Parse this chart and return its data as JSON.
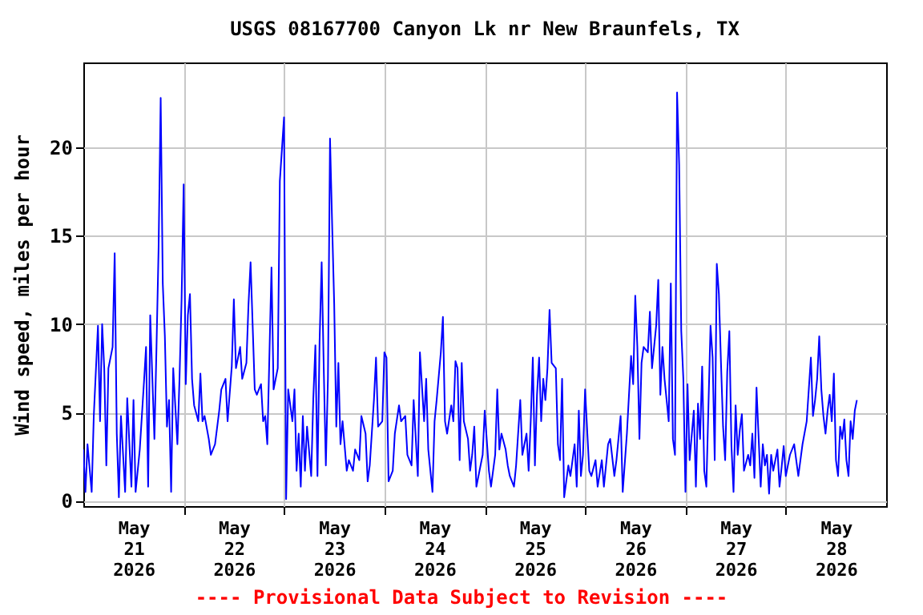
{
  "chart_data": {
    "type": "line",
    "title": "USGS 08167700 Canyon Lk nr New Braunfels, TX",
    "ylabel": "Wind speed, miles per hour",
    "annotations": [
      "---- Provisional Data Subject to Revision ----"
    ],
    "xlim": [
      "2026-05-21",
      "2026-05-29"
    ],
    "xticks": [
      {
        "value": "2026-05-21T12:00",
        "label": "May 21 2026"
      },
      {
        "value": "2026-05-22",
        "label": null
      },
      {
        "value": "2026-05-22T12:00",
        "label": "May 22 2026"
      },
      {
        "value": "2026-05-23",
        "label": null
      },
      {
        "value": "2026-05-23T12:00",
        "label": "May 23 2026"
      },
      {
        "value": "2026-05-24",
        "label": null
      },
      {
        "value": "2026-05-24T12:00",
        "label": "May 24 2026"
      },
      {
        "value": "2026-05-25",
        "label": null
      },
      {
        "value": "2026-05-25T12:00",
        "label": "May 25 2026"
      },
      {
        "value": "2026-05-26",
        "label": null
      },
      {
        "value": "2026-05-26T12:00",
        "label": "May 26 2026"
      },
      {
        "value": "2026-05-27",
        "label": null
      },
      {
        "value": "2026-05-27T12:00",
        "label": "May 27 2026"
      },
      {
        "value": "2026-05-28",
        "label": null
      },
      {
        "value": "2026-05-28T12:00",
        "label": "May 28 2026"
      }
    ],
    "ylim": [
      -0.3,
      24.8
    ],
    "yticks": [
      0,
      5,
      10,
      15,
      20
    ],
    "grid": true,
    "series": [
      {
        "color": "#0000ff",
        "x": [
          "2026-05-21T00:00",
          "2026-05-21T00:30",
          "2026-05-21T01:00",
          "2026-05-21T02:00",
          "2026-05-21T02:30",
          "2026-05-21T03:30",
          "2026-05-21T04:00",
          "2026-05-21T04:30",
          "2026-05-21T05:00",
          "2026-05-21T05:30",
          "2026-05-21T06:00",
          "2026-05-21T07:00",
          "2026-05-21T07:30",
          "2026-05-21T08:00",
          "2026-05-21T08:30",
          "2026-05-21T09:00",
          "2026-05-21T10:00",
          "2026-05-21T10:30",
          "2026-05-21T11:30",
          "2026-05-21T12:00",
          "2026-05-21T12:30",
          "2026-05-21T13:30",
          "2026-05-21T14:30",
          "2026-05-21T15:00",
          "2026-05-21T15:30",
          "2026-05-21T16:00",
          "2026-05-21T17:00",
          "2026-05-21T17:30",
          "2026-05-21T18:00",
          "2026-05-21T18:30",
          "2026-05-21T19:00",
          "2026-05-21T19:30",
          "2026-05-21T20:00",
          "2026-05-21T20:30",
          "2026-05-21T21:00",
          "2026-05-21T21:30",
          "2026-05-21T22:30",
          "2026-05-21T23:00",
          "2026-05-21T23:30",
          "2026-05-22T00:00",
          "2026-05-22T00:30",
          "2026-05-22T01:00",
          "2026-05-22T01:30",
          "2026-05-22T02:00",
          "2026-05-22T02:30",
          "2026-05-22T03:30",
          "2026-05-22T04:00",
          "2026-05-22T04:30",
          "2026-05-22T05:00",
          "2026-05-22T06:00",
          "2026-05-22T06:30",
          "2026-05-22T07:30",
          "2026-05-22T08:30",
          "2026-05-22T09:00",
          "2026-05-22T10:00",
          "2026-05-22T10:30",
          "2026-05-22T11:30",
          "2026-05-22T12:00",
          "2026-05-22T12:30",
          "2026-05-22T13:30",
          "2026-05-22T14:00",
          "2026-05-22T15:00",
          "2026-05-22T15:30",
          "2026-05-22T16:00",
          "2026-05-22T17:00",
          "2026-05-22T17:30",
          "2026-05-22T18:30",
          "2026-05-22T19:00",
          "2026-05-22T19:30",
          "2026-05-22T20:00",
          "2026-05-22T21:00",
          "2026-05-22T21:30",
          "2026-05-22T22:30",
          "2026-05-22T23:00",
          "2026-05-23T00:00",
          "2026-05-23T00:30",
          "2026-05-23T01:00",
          "2026-05-23T02:00",
          "2026-05-23T02:30",
          "2026-05-23T03:00",
          "2026-05-23T03:30",
          "2026-05-23T04:00",
          "2026-05-23T04:30",
          "2026-05-23T05:00",
          "2026-05-23T05:30",
          "2026-05-23T06:30",
          "2026-05-23T07:00",
          "2026-05-23T07:30",
          "2026-05-23T08:00",
          "2026-05-23T08:30",
          "2026-05-23T09:00",
          "2026-05-23T09:30",
          "2026-05-23T10:00",
          "2026-05-23T10:30",
          "2026-05-23T11:00",
          "2026-05-23T11:30",
          "2026-05-23T12:00",
          "2026-05-23T12:30",
          "2026-05-23T13:00",
          "2026-05-23T13:30",
          "2026-05-23T14:00",
          "2026-05-23T15:00",
          "2026-05-23T15:30",
          "2026-05-23T16:30",
          "2026-05-23T17:00",
          "2026-05-23T18:00",
          "2026-05-23T18:30",
          "2026-05-23T19:30",
          "2026-05-23T20:00",
          "2026-05-23T20:30",
          "2026-05-23T21:30",
          "2026-05-23T22:00",
          "2026-05-23T22:30",
          "2026-05-23T23:30",
          "2026-05-24T00:00",
          "2026-05-24T00:30",
          "2026-05-24T01:00",
          "2026-05-24T02:00",
          "2026-05-24T02:30",
          "2026-05-24T03:30",
          "2026-05-24T04:00",
          "2026-05-24T05:00",
          "2026-05-24T05:30",
          "2026-05-24T06:30",
          "2026-05-24T07:00",
          "2026-05-24T08:00",
          "2026-05-24T08:30",
          "2026-05-24T09:30",
          "2026-05-24T10:00",
          "2026-05-24T10:30",
          "2026-05-24T11:30",
          "2026-05-24T12:00",
          "2026-05-24T12:30",
          "2026-05-24T13:30",
          "2026-05-24T14:00",
          "2026-05-24T14:30",
          "2026-05-24T15:00",
          "2026-05-24T16:00",
          "2026-05-24T16:30",
          "2026-05-24T17:00",
          "2026-05-24T17:30",
          "2026-05-24T18:00",
          "2026-05-24T18:30",
          "2026-05-24T19:00",
          "2026-05-24T20:00",
          "2026-05-24T20:30",
          "2026-05-24T21:00",
          "2026-05-24T21:30",
          "2026-05-24T22:00",
          "2026-05-24T23:30",
          "2026-05-25T00:00",
          "2026-05-25T01:00",
          "2026-05-25T01:30",
          "2026-05-25T02:30",
          "2026-05-25T03:00",
          "2026-05-25T03:30",
          "2026-05-25T04:00",
          "2026-05-25T05:00",
          "2026-05-25T05:30",
          "2026-05-25T06:00",
          "2026-05-25T07:00",
          "2026-05-25T07:30",
          "2026-05-25T08:30",
          "2026-05-25T09:00",
          "2026-05-25T10:00",
          "2026-05-25T10:30",
          "2026-05-25T11:00",
          "2026-05-25T11:30",
          "2026-05-25T12:00",
          "2026-05-25T12:30",
          "2026-05-25T13:00",
          "2026-05-25T13:30",
          "2026-05-25T14:00",
          "2026-05-25T14:30",
          "2026-05-25T15:00",
          "2026-05-25T15:30",
          "2026-05-25T16:00",
          "2026-05-25T17:00",
          "2026-05-25T17:30",
          "2026-05-25T18:00",
          "2026-05-25T18:30",
          "2026-05-25T19:00",
          "2026-05-25T20:00",
          "2026-05-25T20:30",
          "2026-05-25T21:30",
          "2026-05-25T22:00",
          "2026-05-25T22:30",
          "2026-05-25T23:00",
          "2026-05-25T23:30",
          "2026-05-26T00:00",
          "2026-05-26T01:00",
          "2026-05-26T01:30",
          "2026-05-26T02:30",
          "2026-05-26T03:00",
          "2026-05-26T04:00",
          "2026-05-26T04:30",
          "2026-05-26T05:30",
          "2026-05-26T06:00",
          "2026-05-26T07:00",
          "2026-05-26T07:30",
          "2026-05-26T08:30",
          "2026-05-26T09:00",
          "2026-05-26T10:00",
          "2026-05-26T10:30",
          "2026-05-26T11:00",
          "2026-05-26T11:30",
          "2026-05-26T12:00",
          "2026-05-26T12:30",
          "2026-05-26T13:00",
          "2026-05-26T13:30",
          "2026-05-26T14:00",
          "2026-05-26T15:00",
          "2026-05-26T15:30",
          "2026-05-26T16:00",
          "2026-05-26T17:00",
          "2026-05-26T17:30",
          "2026-05-26T18:00",
          "2026-05-26T18:30",
          "2026-05-26T19:00",
          "2026-05-26T20:00",
          "2026-05-26T20:30",
          "2026-05-26T21:00",
          "2026-05-26T21:30",
          "2026-05-26T22:00",
          "2026-05-26T22:30",
          "2026-05-26T23:00",
          "2026-05-26T23:30",
          "2026-05-27T00:00",
          "2026-05-27T00:30",
          "2026-05-27T01:00",
          "2026-05-27T02:00",
          "2026-05-27T02:30",
          "2026-05-27T03:00",
          "2026-05-27T03:30",
          "2026-05-27T04:00",
          "2026-05-27T04:30",
          "2026-05-27T05:00",
          "2026-05-27T06:00",
          "2026-05-27T06:30",
          "2026-05-27T07:00",
          "2026-05-27T07:30",
          "2026-05-27T08:00",
          "2026-05-27T08:30",
          "2026-05-27T09:00",
          "2026-05-27T09:30",
          "2026-05-27T10:00",
          "2026-05-27T10:30",
          "2026-05-27T11:00",
          "2026-05-27T11:30",
          "2026-05-27T12:00",
          "2026-05-27T12:30",
          "2026-05-27T13:00",
          "2026-05-27T13:30",
          "2026-05-27T14:00",
          "2026-05-27T15:00",
          "2026-05-27T15:30",
          "2026-05-27T16:00",
          "2026-05-27T16:30",
          "2026-05-27T17:00",
          "2026-05-27T18:00",
          "2026-05-27T18:30",
          "2026-05-27T19:00",
          "2026-05-27T19:30",
          "2026-05-27T20:00",
          "2026-05-27T20:30",
          "2026-05-27T21:00",
          "2026-05-27T22:00",
          "2026-05-27T22:30",
          "2026-05-27T23:00",
          "2026-05-27T23:30",
          "2026-05-28T00:00",
          "2026-05-28T01:00",
          "2026-05-28T02:00",
          "2026-05-28T02:30",
          "2026-05-28T03:00",
          "2026-05-28T04:00",
          "2026-05-28T05:00",
          "2026-05-28T05:30",
          "2026-05-28T06:00",
          "2026-05-28T06:30",
          "2026-05-28T07:00",
          "2026-05-28T07:30",
          "2026-05-28T08:00",
          "2026-05-28T08:30",
          "2026-05-28T09:00",
          "2026-05-28T09:30",
          "2026-05-28T10:00",
          "2026-05-28T10:30",
          "2026-05-28T11:00",
          "2026-05-28T11:30",
          "2026-05-28T12:00",
          "2026-05-28T12:30",
          "2026-05-28T13:00",
          "2026-05-28T13:30",
          "2026-05-28T14:00",
          "2026-05-28T14:30",
          "2026-05-28T15:00",
          "2026-05-28T15:30",
          "2026-05-28T16:00",
          "2026-05-28T16:30",
          "2026-05-28T17:00"
        ],
        "values": [
          2.9,
          0.5,
          3.2,
          0.5,
          4.8,
          9.9,
          4.5,
          10,
          7.5,
          2,
          7.5,
          8.7,
          14,
          3.8,
          0.2,
          4.8,
          0.5,
          5.8,
          0.8,
          5.7,
          0.5,
          2.9,
          6.7,
          8.7,
          0.8,
          10.5,
          3.5,
          8.7,
          14.3,
          22.8,
          12.3,
          9.3,
          4.2,
          5.7,
          0.5,
          7.5,
          3.2,
          6.9,
          11.4,
          17.9,
          6.6,
          10.5,
          11.7,
          6.9,
          5.4,
          4.5,
          7.2,
          4.5,
          4.8,
          3.5,
          2.6,
          3.2,
          5.1,
          6.3,
          6.9,
          4.5,
          7.6,
          11.4,
          7.5,
          8.7,
          6.9,
          7.8,
          11.1,
          13.5,
          6.3,
          6,
          6.6,
          4.5,
          4.8,
          3.2,
          13.2,
          6.3,
          7.5,
          18.1,
          21.7,
          0.1,
          6.3,
          4.5,
          6.3,
          1.7,
          3.8,
          0.8,
          4.8,
          1.7,
          4.2,
          1.4,
          5.8,
          8.8,
          1.4,
          9,
          13.5,
          7.5,
          2,
          6.9,
          20.5,
          15.7,
          11.1,
          4.2,
          7.8,
          3.2,
          4.5,
          1.7,
          2.3,
          1.7,
          2.9,
          2.3,
          4.8,
          3.8,
          1.1,
          2,
          5.7,
          8.1,
          4.2,
          4.5,
          8.4,
          8.1,
          1.1,
          1.7,
          3.8,
          5.4,
          4.5,
          4.8,
          2.6,
          2,
          5.7,
          1.4,
          8.4,
          4.5,
          6.9,
          2.9,
          0.5,
          4.5,
          5.7,
          8.4,
          10.4,
          4.5,
          3.8,
          5.4,
          4.5,
          7.9,
          7.5,
          2.3,
          7.8,
          4.5,
          3.5,
          1.7,
          2.6,
          4.2,
          0.8,
          2.6,
          5.1,
          1.7,
          0.8,
          2.6,
          6.3,
          2.9,
          3.8,
          2.9,
          2,
          1.4,
          0.8,
          2,
          5.7,
          2.6,
          3.8,
          1.7,
          4.5,
          8.1,
          2,
          6,
          8.1,
          4.5,
          6.9,
          5.7,
          7.5,
          10.8,
          7.8,
          7.5,
          3.2,
          2.3,
          6.9,
          0.2,
          2,
          1.4,
          3.2,
          0.8,
          5.1,
          1.4,
          2.6,
          6.3,
          1.7,
          1.4,
          2.3,
          0.8,
          2.3,
          0.8,
          3.2,
          3.5,
          1.4,
          2.3,
          4.8,
          0.5,
          3.8,
          6,
          8.2,
          6.6,
          11.6,
          8.7,
          3.5,
          7.8,
          8.7,
          8.4,
          10.7,
          7.5,
          9.9,
          12.5,
          6,
          8.7,
          6.9,
          4.5,
          12.3,
          3.5,
          2.6,
          23.1,
          19,
          9.6,
          6.9,
          0.5,
          6.6,
          2.3,
          5.1,
          0.8,
          5.5,
          3.5,
          7.6,
          1.7,
          0.8,
          9.9,
          8.1,
          2.3,
          13.4,
          11.7,
          7.8,
          4.2,
          2.3,
          7.3,
          9.6,
          3.1,
          0.5,
          5.4,
          2.6,
          4,
          4.9,
          1.7,
          2.6,
          2,
          3.8,
          1.3,
          6.4,
          0.8,
          3.2,
          2,
          2.6,
          0.4,
          2.6,
          1.7,
          2.9,
          0.8,
          1.9,
          3.1,
          1.4,
          2.6,
          3.2,
          2.3,
          1.4,
          3.2,
          4.5,
          6.3,
          8.1,
          4.8,
          5.7,
          6.9,
          9.3,
          6.3,
          4.8,
          3.8,
          5.1,
          6,
          4.5,
          7.2,
          2.3,
          1.4,
          4.2,
          3.5,
          4.6,
          2.3,
          1.4,
          4.5,
          3.5,
          5.1,
          5.7
        ]
      }
    ]
  }
}
